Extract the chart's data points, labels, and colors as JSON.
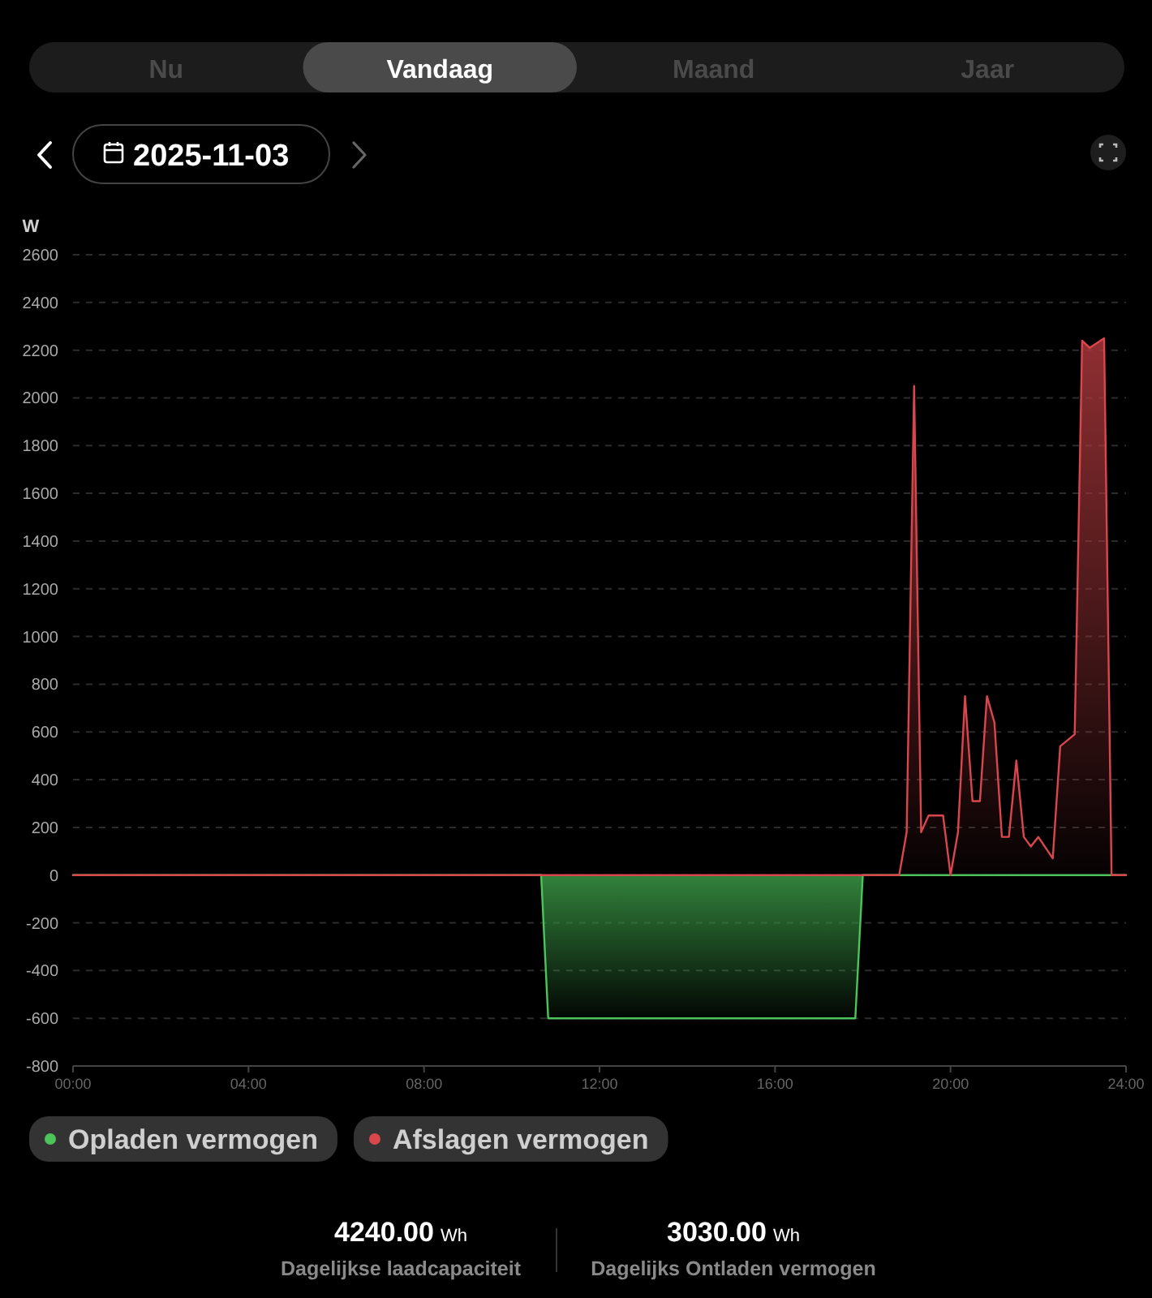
{
  "chart_data": {
    "type": "area",
    "ylabel": "W",
    "xlim": [
      0,
      24
    ],
    "xticks": [
      {
        "value": 0,
        "label": "00:00"
      },
      {
        "value": 4,
        "label": "04:00"
      },
      {
        "value": 8,
        "label": "08:00"
      },
      {
        "value": 12,
        "label": "12:00"
      },
      {
        "value": 16,
        "label": "16:00"
      },
      {
        "value": 20,
        "label": "20:00"
      },
      {
        "value": 24,
        "label": "24:00"
      }
    ],
    "ylim": [
      -800,
      2600
    ],
    "yticks": [
      -800,
      -600,
      -400,
      -200,
      0,
      200,
      400,
      600,
      800,
      1000,
      1200,
      1400,
      1600,
      1800,
      2000,
      2200,
      2400,
      2600
    ],
    "grid": "y",
    "legend": "bottom",
    "series": [
      {
        "name": "Opladen vermogen",
        "color": "#4cc45a",
        "x": [
          0,
          10.67,
          10.83,
          17.83,
          18,
          24
        ],
        "values": [
          0,
          0,
          -600,
          -600,
          0,
          0
        ]
      },
      {
        "name": "Afslagen vermogen",
        "color": "#d9474c",
        "x": [
          0,
          18.83,
          19,
          19.17,
          19.33,
          19.5,
          19.83,
          20,
          20.17,
          20.33,
          20.5,
          20.67,
          20.83,
          21,
          21.17,
          21.33,
          21.5,
          21.67,
          21.83,
          22,
          22.33,
          22.5,
          22.83,
          23,
          23.17,
          23.5,
          23.67,
          24
        ],
        "values": [
          0,
          0,
          180,
          2050,
          180,
          250,
          250,
          0,
          180,
          750,
          310,
          310,
          750,
          640,
          160,
          160,
          480,
          160,
          120,
          160,
          70,
          540,
          590,
          2240,
          2210,
          2250,
          0,
          0
        ]
      }
    ],
    "annotations": [
      "Nu",
      "Vandaag",
      "Maand",
      "Jaar",
      "2025-11-03",
      "4240.00 Wh",
      "Dagelijkse laadcapaciteit",
      "3030.00 Wh",
      "Dagelijks Ontladen vermogen"
    ]
  }
}
